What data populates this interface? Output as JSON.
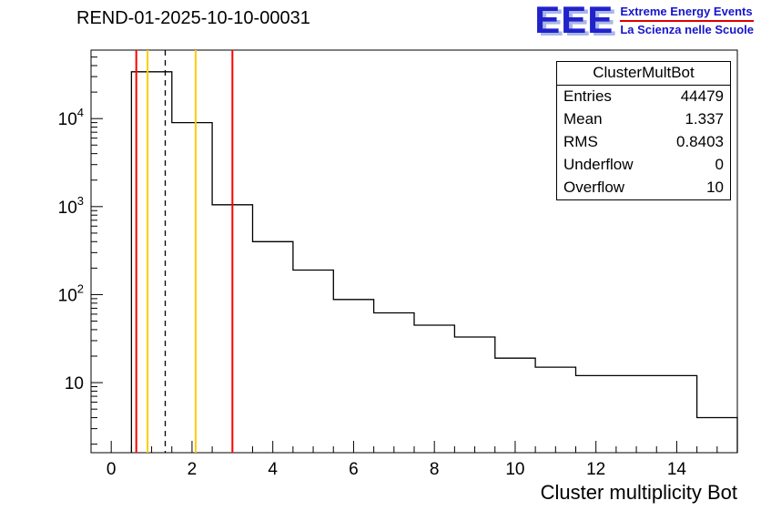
{
  "title": "REND-01-2025-10-10-00031",
  "logo": {
    "text": "EEE",
    "line1": "Extreme Energy Events",
    "line2": "La Scienza nelle Scuole",
    "blue": "#1515cc",
    "shadow_blue": "#a9b7e8",
    "red": "#dd0000"
  },
  "stats": {
    "title": "ClusterMultBot",
    "rows": [
      {
        "label": "Entries",
        "value": "44479"
      },
      {
        "label": "Mean",
        "value": "1.337"
      },
      {
        "label": "RMS",
        "value": "0.8403"
      },
      {
        "label": "Underflow",
        "value": "0"
      },
      {
        "label": "Overflow",
        "value": "10"
      }
    ]
  },
  "chart_data": {
    "type": "bar",
    "subtype": "step-histogram",
    "title": "REND-01-2025-10-10-00031",
    "xlabel": "Cluster multiplicity Bot",
    "ylabel": "",
    "yscale": "log",
    "grid": false,
    "xlim": [
      -0.5,
      15.5
    ],
    "ylim": [
      1.6,
      60000
    ],
    "x_ticks": [
      0,
      2,
      4,
      6,
      8,
      10,
      12,
      14
    ],
    "x_minor_step": 0.5,
    "y_ticks": [
      10,
      100,
      1000,
      10000
    ],
    "bin_edges": [
      0.5,
      1.5,
      2.5,
      3.5,
      4.5,
      5.5,
      6.5,
      7.5,
      8.5,
      9.5,
      10.5,
      11.5,
      12.5,
      13.5,
      14.5,
      15.5
    ],
    "bin_values": [
      34000,
      9000,
      1050,
      400,
      190,
      88,
      62,
      45,
      33,
      19,
      15,
      12,
      12,
      12,
      4
    ],
    "line_color": "#000000",
    "vlines": [
      {
        "x": 0.62,
        "color": "#ff0000",
        "style": "solid"
      },
      {
        "x": 0.9,
        "color": "#ffcc00",
        "style": "solid"
      },
      {
        "x": 1.337,
        "color": "#000000",
        "style": "dashed"
      },
      {
        "x": 2.09,
        "color": "#ffcc00",
        "style": "solid"
      },
      {
        "x": 3.0,
        "color": "#ff0000",
        "style": "solid"
      }
    ]
  }
}
